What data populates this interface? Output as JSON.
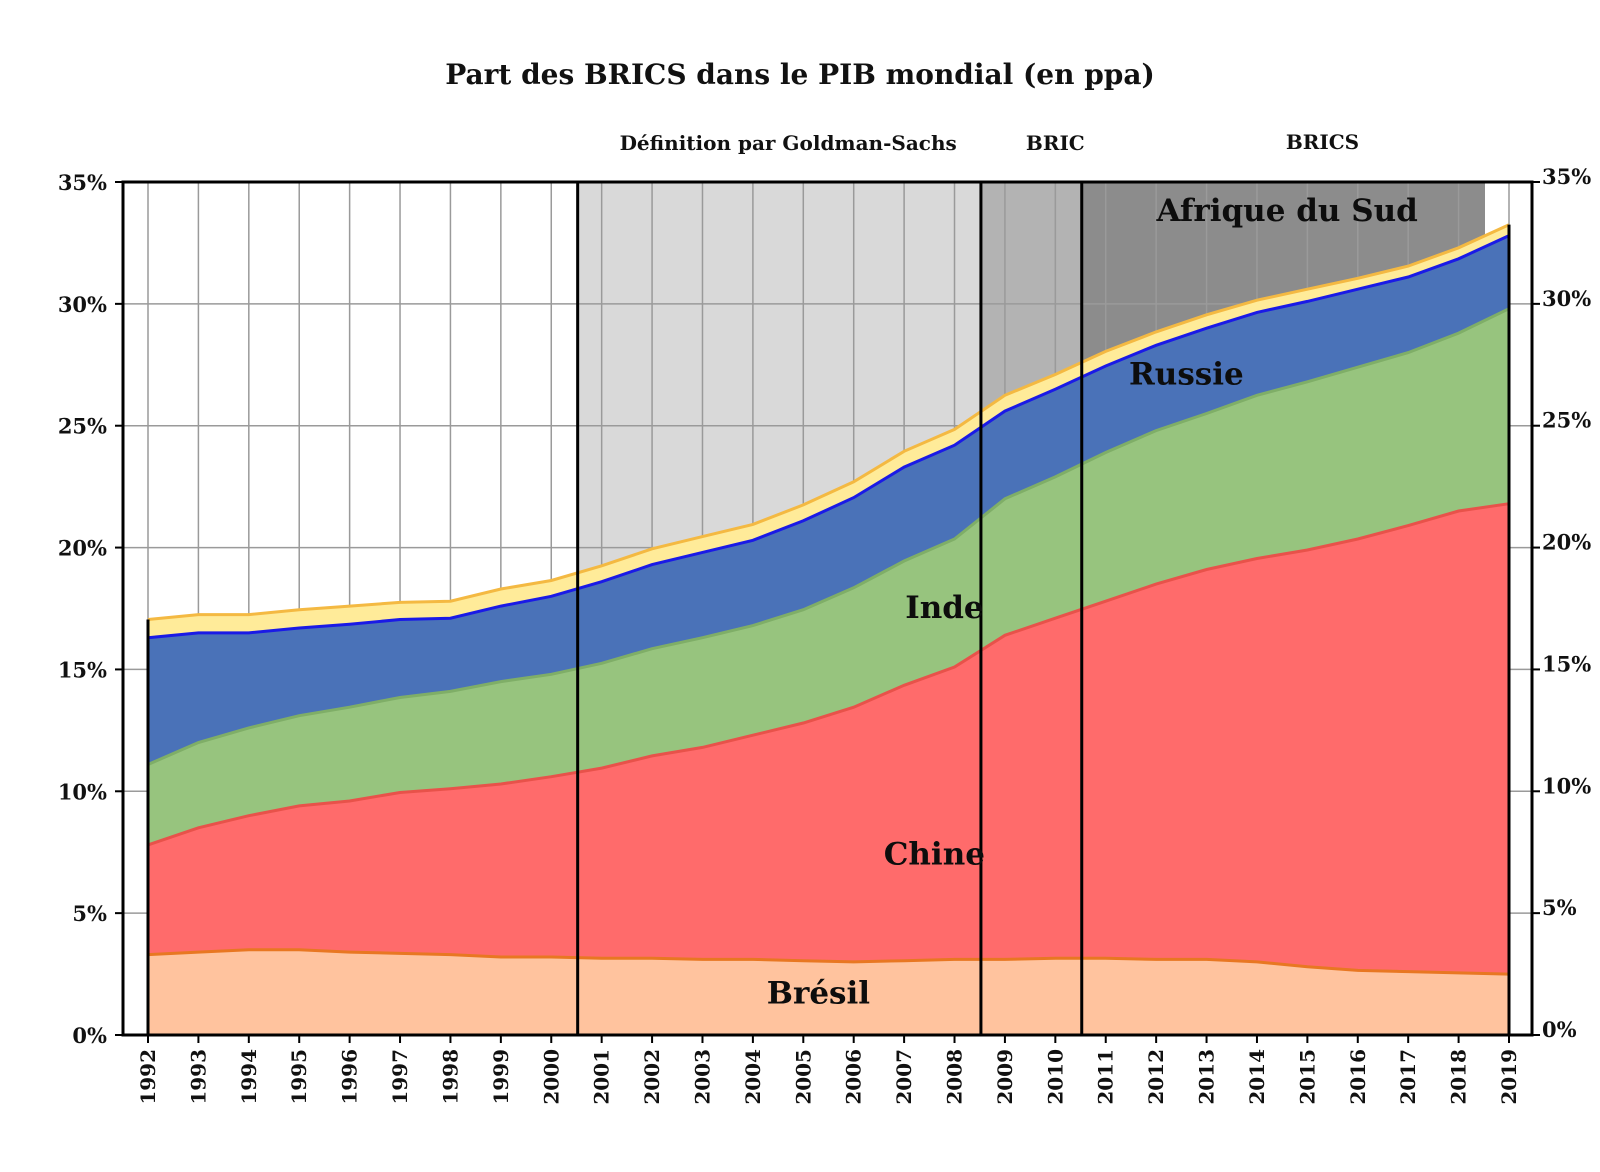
{
  "chart_data": {
    "type": "area",
    "title": "Part des BRICS dans le PIB mondial (en ppa)",
    "stacked": true,
    "x": [
      1992,
      1993,
      1994,
      1995,
      1996,
      1997,
      1998,
      1999,
      2000,
      2001,
      2002,
      2003,
      2004,
      2005,
      2006,
      2007,
      2008,
      2009,
      2010,
      2011,
      2012,
      2013,
      2014,
      2015,
      2016,
      2017,
      2018,
      2019
    ],
    "ylim": [
      0,
      35
    ],
    "yticks_left": [
      "0%",
      "5%",
      "10%",
      "15%",
      "20%",
      "25%",
      "30%",
      "35%"
    ],
    "yticks_right": [
      "0%",
      "5%",
      "10%",
      "15%",
      "20%",
      "25%",
      "30%",
      "35%"
    ],
    "grid": true,
    "series": [
      {
        "name": "Brésil",
        "color": "#FFC39E",
        "line": "#E87722",
        "values": [
          3.3,
          3.4,
          3.5,
          3.5,
          3.4,
          3.35,
          3.3,
          3.2,
          3.2,
          3.15,
          3.15,
          3.1,
          3.1,
          3.05,
          3.0,
          3.05,
          3.1,
          3.1,
          3.15,
          3.15,
          3.1,
          3.1,
          3.0,
          2.8,
          2.65,
          2.6,
          2.55,
          2.5
        ]
      },
      {
        "name": "Chine",
        "color": "#FF6B6B",
        "line": "#E8524A",
        "values": [
          4.5,
          5.1,
          5.5,
          5.9,
          6.2,
          6.6,
          6.8,
          7.1,
          7.4,
          7.8,
          8.3,
          8.7,
          9.2,
          9.75,
          10.45,
          11.3,
          12.0,
          13.3,
          13.95,
          14.65,
          15.4,
          16.0,
          16.55,
          17.1,
          17.7,
          18.3,
          18.95,
          19.3
        ]
      },
      {
        "name": "Inde",
        "color": "#97C47E",
        "line": "#7FAE67",
        "values": [
          3.3,
          3.5,
          3.6,
          3.7,
          3.85,
          3.9,
          4.0,
          4.2,
          4.2,
          4.3,
          4.4,
          4.5,
          4.5,
          4.65,
          4.9,
          5.1,
          5.25,
          5.6,
          5.8,
          6.1,
          6.3,
          6.4,
          6.7,
          6.9,
          7.05,
          7.1,
          7.3,
          8.0
        ]
      },
      {
        "name": "Russie",
        "color": "#4A72B8",
        "line": "#1A1AE6",
        "values": [
          5.2,
          4.5,
          3.9,
          3.6,
          3.4,
          3.2,
          3.0,
          3.1,
          3.2,
          3.35,
          3.45,
          3.5,
          3.5,
          3.65,
          3.7,
          3.85,
          3.85,
          3.6,
          3.6,
          3.55,
          3.5,
          3.5,
          3.4,
          3.3,
          3.2,
          3.1,
          3.05,
          3.0
        ]
      },
      {
        "name": "Afrique du Sud",
        "color": "#FFEB99",
        "line": "#F4B942",
        "values": [
          0.75,
          0.75,
          0.75,
          0.75,
          0.75,
          0.7,
          0.7,
          0.7,
          0.65,
          0.65,
          0.65,
          0.65,
          0.65,
          0.65,
          0.65,
          0.65,
          0.65,
          0.65,
          0.6,
          0.6,
          0.55,
          0.55,
          0.5,
          0.5,
          0.45,
          0.45,
          0.45,
          0.45
        ]
      }
    ],
    "periods": [
      {
        "label": "Définition par Goldman-Sachs",
        "from": 2001,
        "to": 2009,
        "color": "#D9D9D9"
      },
      {
        "label": "BRIC",
        "from": 2009,
        "to": 2011,
        "color": "#B3B3B3"
      },
      {
        "label": "BRICS",
        "from": 2011,
        "to": 2019,
        "color": "#8C8C8C"
      }
    ],
    "divider_years": [
      2001,
      2009,
      2011
    ],
    "labels": [
      {
        "text": "Brésil",
        "x": 2005.3,
        "y": 1.3
      },
      {
        "text": "Chine",
        "x": 2007.6,
        "y": 7.0
      },
      {
        "text": "Inde",
        "x": 2007.8,
        "y": 17.1
      },
      {
        "text": "Russie",
        "x": 2012.6,
        "y": 26.7
      },
      {
        "text": "Afrique du Sud",
        "x": 2014.6,
        "y": 33.4
      }
    ]
  }
}
